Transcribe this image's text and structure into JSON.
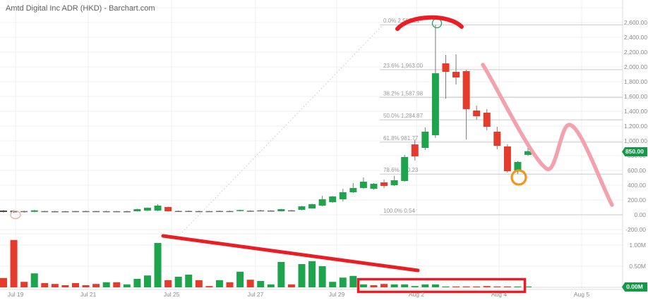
{
  "header": {
    "title": "Amtd Digital Inc ADR (HKD) - Barchart.com"
  },
  "y_axis": {
    "labels": [
      "2,600.00",
      "2,400.00",
      "2,200.00",
      "2,000.00",
      "1,800.00",
      "1,600.00",
      "1,400.00",
      "1,200.00",
      "1,000.00",
      "800.00",
      "600.00",
      "400.00",
      "200.00",
      "0.00",
      "-200.00"
    ],
    "price_badge": "850.00"
  },
  "volume_axis": {
    "labels": [
      "1.00M",
      "0.50M"
    ],
    "badge": "0.00M"
  },
  "x_axis": {
    "labels": [
      "Jul 19",
      "Jul 21",
      "Jul 25",
      "Jul 27",
      "Jul 29",
      "Aug 2",
      "Aug 4",
      "Aug 5"
    ]
  },
  "colors": {
    "up": "#1fa44e",
    "down": "#e43b2c",
    "neutral": "#6e6e6e",
    "dark": "#4d4643",
    "wick": "#7a7a7a",
    "grid": "#efefef",
    "grid_dark": "#dedede",
    "fib_line": "#c9c9c9",
    "fib_text": "#9a9a9a",
    "axis_text": "#8c8c8c",
    "badge": "#129a47",
    "annotation_red": "#ec1c24",
    "annotation_pink": "#f2a2ac",
    "annotation_orange": "#f6921e",
    "annotation_faint": "#f0b3ac",
    "dotted_trend": "#c6c6c6",
    "marker_green": "#2aa05a"
  },
  "chart_data": {
    "type": "candlestick",
    "title": "Amtd Digital Inc ADR (HKD)",
    "source": "Barchart.com",
    "legend_position": "none",
    "grid": true,
    "price_axis": {
      "min": -200,
      "max": 2600,
      "tick_step": 200,
      "current_price": 850.0
    },
    "volume_axis": {
      "ticks_m": [
        1.0,
        0.5,
        0.0
      ],
      "current": "0.00M"
    },
    "x_ticks": [
      "Jul 19",
      "Jul 21",
      "Jul 25",
      "Jul 27",
      "Jul 29",
      "Aug 2",
      "Aug 4",
      "Aug 5"
    ],
    "fib_levels": [
      {
        "label": "0.0% 2,569.21",
        "value": 2569.21
      },
      {
        "label": "23.6% 1,963.00",
        "value": 1963.0
      },
      {
        "label": "38.2% 1,587.98",
        "value": 1587.98
      },
      {
        "label": "50.0% 1,284.87",
        "value": 1284.87
      },
      {
        "label": "61.8% 981.77",
        "value": 981.77
      },
      {
        "label": "78.6% 550.23",
        "value": 550.23
      },
      {
        "label": "100.0% 0.54",
        "value": 0.54
      }
    ],
    "candles_ohlc_color": [
      [
        57,
        67,
        29,
        38,
        "d"
      ],
      [
        55,
        62,
        25,
        35,
        "d"
      ],
      [
        45,
        55,
        30,
        50,
        "n"
      ],
      [
        40,
        65,
        35,
        60,
        "g"
      ],
      [
        50,
        55,
        35,
        45,
        "n"
      ],
      [
        45,
        55,
        35,
        48,
        "n"
      ],
      [
        48,
        52,
        38,
        44,
        "n"
      ],
      [
        46,
        54,
        36,
        50,
        "n"
      ],
      [
        50,
        56,
        40,
        46,
        "n"
      ],
      [
        47,
        53,
        37,
        50,
        "n"
      ],
      [
        49,
        55,
        39,
        45,
        "n"
      ],
      [
        46,
        52,
        36,
        49,
        "n"
      ],
      [
        48,
        56,
        38,
        46,
        "n"
      ],
      [
        48,
        82,
        44,
        76,
        "g"
      ],
      [
        57,
        100,
        50,
        95,
        "g"
      ],
      [
        57,
        143,
        50,
        124,
        "g"
      ],
      [
        105,
        112,
        42,
        48,
        "r"
      ],
      [
        50,
        58,
        42,
        52,
        "n"
      ],
      [
        52,
        58,
        42,
        48,
        "n"
      ],
      [
        50,
        56,
        40,
        50,
        "n"
      ],
      [
        48,
        54,
        40,
        50,
        "n"
      ],
      [
        50,
        57,
        42,
        52,
        "n"
      ],
      [
        51,
        58,
        43,
        49,
        "n"
      ],
      [
        50,
        70,
        45,
        65,
        "g"
      ],
      [
        55,
        62,
        46,
        52,
        "n"
      ],
      [
        58,
        66,
        50,
        60,
        "n"
      ],
      [
        55,
        63,
        48,
        57,
        "n"
      ],
      [
        48,
        80,
        45,
        76,
        "g"
      ],
      [
        60,
        68,
        52,
        57,
        "n"
      ],
      [
        67,
        120,
        60,
        114,
        "g"
      ],
      [
        86,
        150,
        80,
        143,
        "g"
      ],
      [
        124,
        257,
        115,
        210,
        "g"
      ],
      [
        171,
        255,
        160,
        248,
        "g"
      ],
      [
        210,
        352,
        181,
        305,
        "g"
      ],
      [
        305,
        429,
        295,
        362,
        "g"
      ],
      [
        362,
        505,
        350,
        448,
        "g"
      ],
      [
        352,
        430,
        340,
        419,
        "g"
      ],
      [
        438,
        476,
        362,
        390,
        "r"
      ],
      [
        400,
        524,
        390,
        467,
        "g"
      ],
      [
        457,
        810,
        448,
        781,
        "g"
      ],
      [
        952,
        1019,
        733,
        790,
        "r"
      ],
      [
        905,
        1181,
        876,
        1124,
        "g"
      ],
      [
        1076,
        2569,
        1040,
        1914,
        "g"
      ],
      [
        2048,
        2162,
        1571,
        1933,
        "r"
      ],
      [
        1933,
        2171,
        1762,
        1857,
        "r"
      ],
      [
        1943,
        1962,
        1019,
        1429,
        "r"
      ],
      [
        1410,
        1476,
        1286,
        1333,
        "r"
      ],
      [
        1381,
        1429,
        1143,
        1190,
        "r"
      ],
      [
        1124,
        1190,
        886,
        933,
        "r"
      ],
      [
        924,
        952,
        571,
        590,
        "r"
      ],
      [
        600,
        724,
        552,
        714,
        "g"
      ],
      [
        810,
        920,
        795,
        860,
        "g"
      ]
    ],
    "volumes_m_color": [
      [
        0.22,
        "r"
      ],
      [
        1.12,
        "r"
      ],
      [
        0.13,
        "r"
      ],
      [
        0.33,
        "g"
      ],
      [
        0.1,
        "r"
      ],
      [
        0.08,
        "r"
      ],
      [
        0.05,
        "r"
      ],
      [
        0.1,
        "r"
      ],
      [
        0.05,
        "r"
      ],
      [
        0.08,
        "r"
      ],
      [
        0.12,
        "g"
      ],
      [
        0.12,
        "r"
      ],
      [
        0.07,
        "g"
      ],
      [
        0.2,
        "g"
      ],
      [
        0.28,
        "g"
      ],
      [
        1.05,
        "g"
      ],
      [
        0.17,
        "r"
      ],
      [
        0.25,
        "g"
      ],
      [
        0.3,
        "g"
      ],
      [
        0.17,
        "r"
      ],
      [
        0.03,
        "r"
      ],
      [
        0.17,
        "g"
      ],
      [
        0.12,
        "r"
      ],
      [
        0.37,
        "g"
      ],
      [
        0.18,
        "r"
      ],
      [
        0.15,
        "g"
      ],
      [
        0.07,
        "g"
      ],
      [
        0.6,
        "g"
      ],
      [
        0.07,
        "r"
      ],
      [
        0.55,
        "g"
      ],
      [
        0.62,
        "g"
      ],
      [
        0.5,
        "g"
      ],
      [
        0.13,
        "g"
      ],
      [
        0.23,
        "g"
      ],
      [
        0.27,
        "g"
      ],
      [
        0.07,
        "g"
      ],
      [
        0.05,
        "r"
      ],
      [
        0.08,
        "r"
      ],
      [
        0.07,
        "g"
      ],
      [
        0.07,
        "g"
      ],
      [
        0.03,
        "g"
      ],
      [
        0.07,
        "g"
      ],
      [
        0.07,
        "g"
      ],
      [
        0.02,
        "g"
      ],
      [
        0.02,
        "r"
      ],
      [
        0.02,
        "r"
      ],
      [
        0.02,
        "r"
      ],
      [
        0.03,
        "r"
      ],
      [
        0.02,
        "r"
      ],
      [
        0.02,
        "r"
      ],
      [
        0.02,
        "g"
      ],
      [
        0.02,
        "g"
      ]
    ],
    "annotations": [
      "arc over blow-off top",
      "pink declining wave projection on right",
      "red downtrend line over volume pane",
      "red rectangle around shrinking volume bars",
      "orange circle at pullback low near Aug 3",
      "faint orange circle at series start"
    ]
  }
}
